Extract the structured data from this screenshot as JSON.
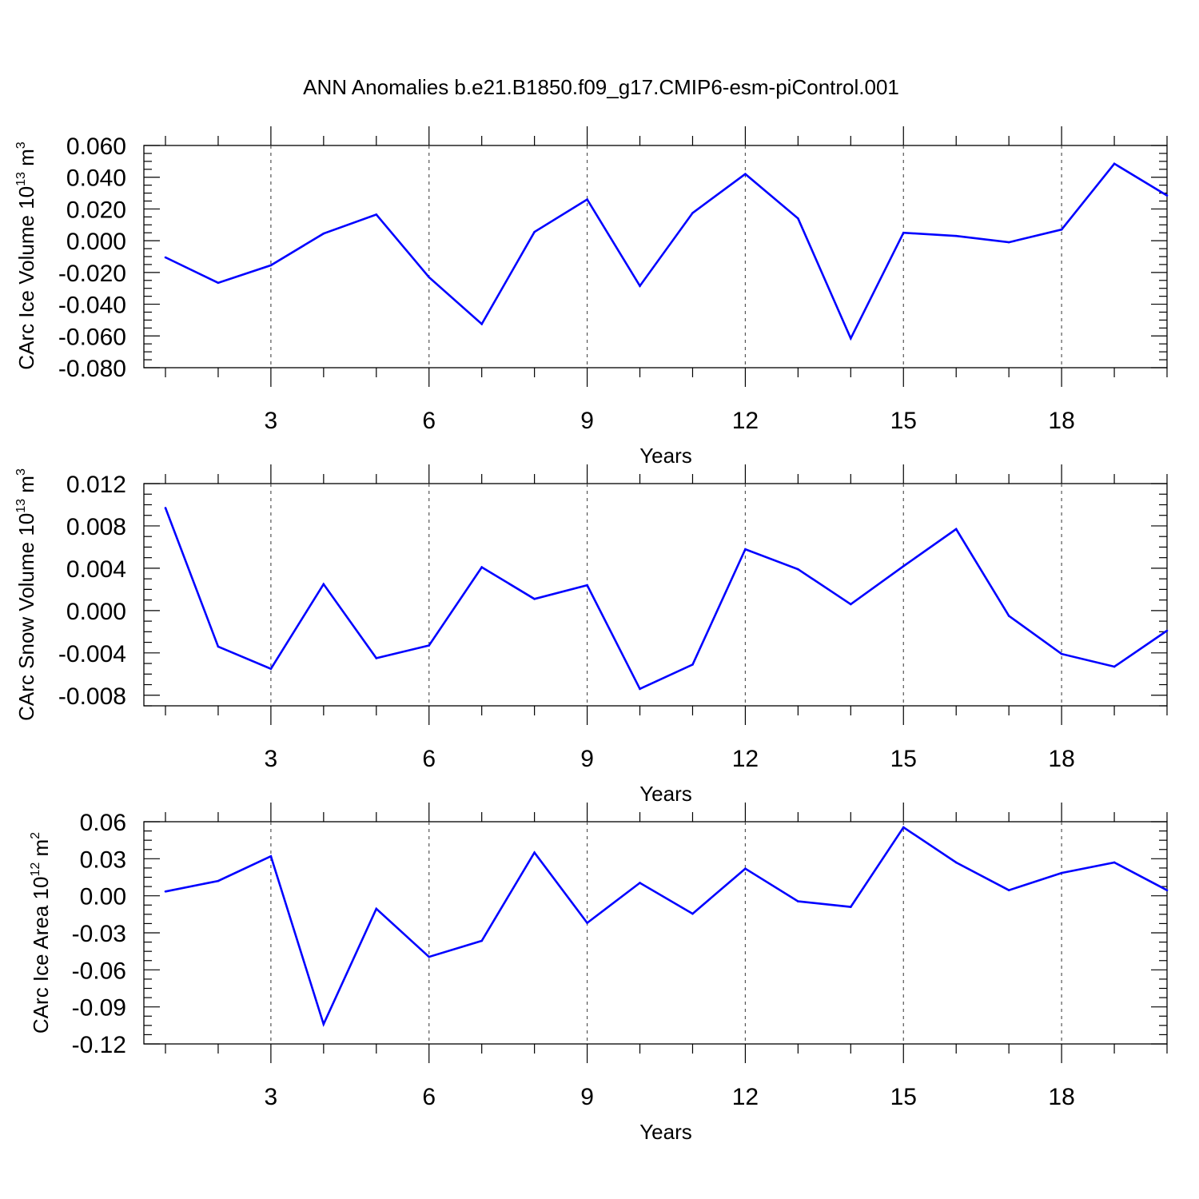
{
  "title": "ANN Anomalies b.e21.B1850.f09_g17.CMIP6-esm-piControl.001",
  "colors": {
    "line": "#0000ff",
    "grid": "#555555",
    "axes": "#000000"
  },
  "chart_data": [
    {
      "type": "line",
      "xlabel": "Years",
      "ylabel": {
        "text": "CArc Ice Volume 10",
        "exp": "13",
        "unit": " m",
        "unit_exp": "3"
      },
      "xlim": [
        1,
        20
      ],
      "ylim": [
        -0.08,
        0.06
      ],
      "xticks": [
        3,
        6,
        9,
        12,
        15,
        18
      ],
      "yticks": [
        -0.08,
        -0.06,
        -0.04,
        -0.02,
        0.0,
        0.02,
        0.04,
        0.06
      ],
      "ytick_labels": [
        "-0.080",
        "-0.060",
        "-0.040",
        "-0.020",
        "0.000",
        "0.020",
        "0.040",
        "0.060"
      ],
      "grid": "vertical-dashed",
      "x": [
        1,
        2,
        3,
        4,
        5,
        6,
        7,
        8,
        9,
        10,
        11,
        12,
        13,
        14,
        15,
        16,
        17,
        18,
        19,
        20
      ],
      "values": [
        -0.0105,
        -0.0265,
        -0.0155,
        0.0045,
        0.0165,
        -0.023,
        -0.0525,
        0.0055,
        0.026,
        -0.0285,
        0.0175,
        0.042,
        0.014,
        -0.0615,
        0.005,
        0.003,
        -0.001,
        0.007,
        0.0485,
        0.0285
      ]
    },
    {
      "type": "line",
      "xlabel": "Years",
      "ylabel": {
        "text": "CArc Snow Volume 10",
        "exp": "13",
        "unit": " m",
        "unit_exp": "3"
      },
      "xlim": [
        1,
        20
      ],
      "ylim": [
        -0.009,
        0.012
      ],
      "xticks": [
        3,
        6,
        9,
        12,
        15,
        18
      ],
      "yticks": [
        -0.008,
        -0.004,
        0.0,
        0.004,
        0.008,
        0.012
      ],
      "ytick_labels": [
        "-0.008",
        "-0.004",
        "0.000",
        "0.004",
        "0.008",
        "0.012"
      ],
      "grid": "vertical-dashed",
      "x": [
        1,
        2,
        3,
        4,
        5,
        6,
        7,
        8,
        9,
        10,
        11,
        12,
        13,
        14,
        15,
        16,
        17,
        18,
        19,
        20
      ],
      "values": [
        0.0097,
        -0.0034,
        -0.0055,
        0.0025,
        -0.0045,
        -0.0033,
        0.0041,
        0.0011,
        0.0024,
        -0.0074,
        -0.0051,
        0.0058,
        0.0039,
        0.0006,
        0.0042,
        0.0077,
        -0.0005,
        -0.0041,
        -0.0053,
        -0.0019
      ]
    },
    {
      "type": "line",
      "xlabel": "Years",
      "ylabel": {
        "text": "CArc Ice Area 10",
        "exp": "12",
        "unit": " m",
        "unit_exp": "2"
      },
      "xlim": [
        1,
        20
      ],
      "ylim": [
        -0.12,
        0.06
      ],
      "xticks": [
        3,
        6,
        9,
        12,
        15,
        18
      ],
      "yticks": [
        -0.12,
        -0.09,
        -0.06,
        -0.03,
        0.0,
        0.03,
        0.06
      ],
      "ytick_labels": [
        "-0.12",
        "-0.09",
        "-0.06",
        "-0.03",
        "0.00",
        "0.03",
        "0.06"
      ],
      "grid": "vertical-dashed",
      "x": [
        1,
        2,
        3,
        4,
        5,
        6,
        7,
        8,
        9,
        10,
        11,
        12,
        13,
        14,
        15,
        16,
        17,
        18,
        19,
        20
      ],
      "values": [
        0.0035,
        0.012,
        0.032,
        -0.104,
        -0.0105,
        -0.0495,
        -0.0365,
        0.035,
        -0.022,
        0.0105,
        -0.0145,
        0.022,
        -0.0045,
        -0.009,
        0.0555,
        0.027,
        0.0045,
        0.0185,
        0.027,
        0.0045
      ]
    }
  ]
}
